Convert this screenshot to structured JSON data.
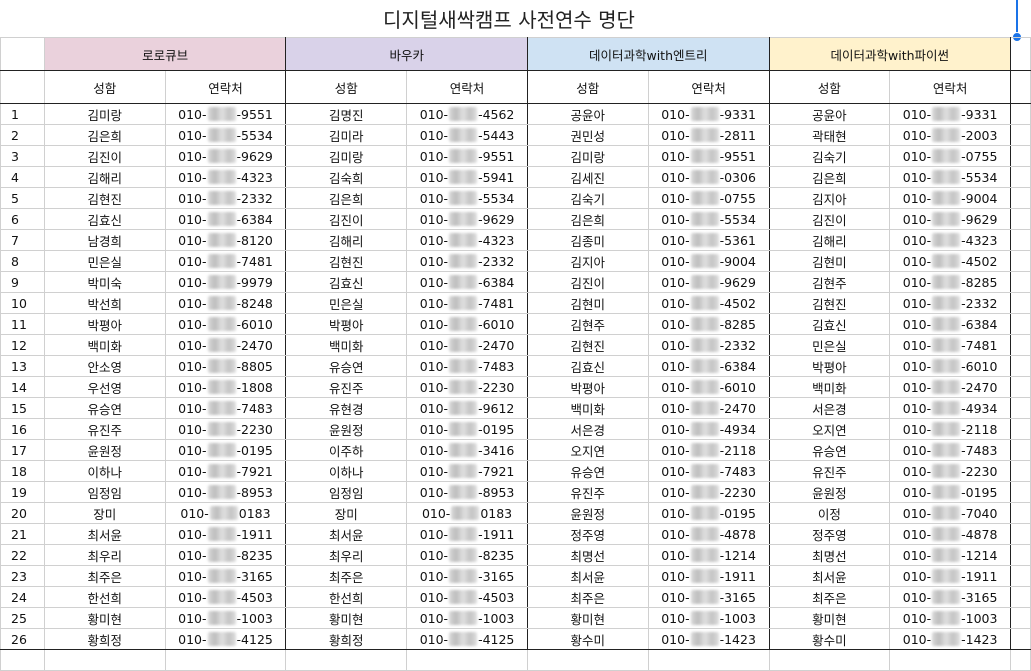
{
  "title": "디지털새싹캠프 사전연수 명단",
  "groups": [
    "로로큐브",
    "바우카",
    "데이터과학with엔트리",
    "데이터과학with파이썬"
  ],
  "colors": {
    "g1": "#ead1dc",
    "g2": "#d9d2e9",
    "g3": "#cfe2f3",
    "g4": "#fff2cc",
    "selection": "#1a73e8"
  },
  "headers": {
    "name": "성함",
    "contact": "연락처"
  },
  "rows": [
    {
      "n": "1",
      "c": [
        [
          "김미랑",
          "010-",
          "-9551"
        ],
        [
          "김명진",
          "010-",
          "-4562"
        ],
        [
          "공윤아",
          "010-",
          "-9331"
        ],
        [
          "공윤아",
          "010-",
          "-9331"
        ]
      ]
    },
    {
      "n": "2",
      "c": [
        [
          "김은희",
          "010-",
          "-5534"
        ],
        [
          "김미라",
          "010-",
          "-5443"
        ],
        [
          "권민성",
          "010-",
          "-2811"
        ],
        [
          "곽태현",
          "010-",
          "-2003"
        ]
      ]
    },
    {
      "n": "3",
      "c": [
        [
          "김진이",
          "010-",
          "-9629"
        ],
        [
          "김미랑",
          "010-",
          "-9551"
        ],
        [
          "김미랑",
          "010-",
          "-9551"
        ],
        [
          "김숙기",
          "010-",
          "-0755"
        ]
      ]
    },
    {
      "n": "4",
      "c": [
        [
          "김해리",
          "010-",
          "-4323"
        ],
        [
          "김숙희",
          "010-",
          "-5941"
        ],
        [
          "김세진",
          "010-",
          "-0306"
        ],
        [
          "김은희",
          "010-",
          "-5534"
        ]
      ]
    },
    {
      "n": "5",
      "c": [
        [
          "김현진",
          "010-",
          "-2332"
        ],
        [
          "김은희",
          "010-",
          "-5534"
        ],
        [
          "김숙기",
          "010-",
          "-0755"
        ],
        [
          "김지아",
          "010-",
          "-9004"
        ]
      ]
    },
    {
      "n": "6",
      "c": [
        [
          "김효신",
          "010-",
          "-6384"
        ],
        [
          "김진이",
          "010-",
          "-9629"
        ],
        [
          "김은희",
          "010-",
          "-5534"
        ],
        [
          "김진이",
          "010-",
          "-9629"
        ]
      ]
    },
    {
      "n": "7",
      "c": [
        [
          "남경희",
          "010-",
          "-8120"
        ],
        [
          "김해리",
          "010-",
          "-4323"
        ],
        [
          "김종미",
          "010-",
          "-5361"
        ],
        [
          "김해리",
          "010-",
          "-4323"
        ]
      ]
    },
    {
      "n": "8",
      "c": [
        [
          "민은실",
          "010-",
          "-7481"
        ],
        [
          "김현진",
          "010-",
          "-2332"
        ],
        [
          "김지아",
          "010-",
          "-9004"
        ],
        [
          "김현미",
          "010-",
          "-4502"
        ]
      ]
    },
    {
      "n": "9",
      "c": [
        [
          "박미숙",
          "010-",
          "-9979"
        ],
        [
          "김효신",
          "010-",
          "-6384"
        ],
        [
          "김진이",
          "010-",
          "-9629"
        ],
        [
          "김현주",
          "010-",
          "-8285"
        ]
      ]
    },
    {
      "n": "10",
      "c": [
        [
          "박선희",
          "010-",
          "-8248"
        ],
        [
          "민은실",
          "010-",
          "-7481"
        ],
        [
          "김현미",
          "010-",
          "-4502"
        ],
        [
          "김현진",
          "010-",
          "-2332"
        ]
      ]
    },
    {
      "n": "11",
      "c": [
        [
          "박평아",
          "010-",
          "-6010"
        ],
        [
          "박평아",
          "010-",
          "-6010"
        ],
        [
          "김현주",
          "010-",
          "-8285"
        ],
        [
          "김효신",
          "010-",
          "-6384"
        ]
      ]
    },
    {
      "n": "12",
      "c": [
        [
          "백미화",
          "010-",
          "-2470"
        ],
        [
          "백미화",
          "010-",
          "-2470"
        ],
        [
          "김현진",
          "010-",
          "-2332"
        ],
        [
          "민은실",
          "010-",
          "-7481"
        ]
      ]
    },
    {
      "n": "13",
      "c": [
        [
          "안소영",
          "010-",
          "-8805"
        ],
        [
          "유승연",
          "010-",
          "-7483"
        ],
        [
          "김효신",
          "010-",
          "-6384"
        ],
        [
          "박평아",
          "010-",
          "-6010"
        ]
      ]
    },
    {
      "n": "14",
      "c": [
        [
          "우선영",
          "010-",
          "-1808"
        ],
        [
          "유진주",
          "010-",
          "-2230"
        ],
        [
          "박평아",
          "010-",
          "-6010"
        ],
        [
          "백미화",
          "010-",
          "-2470"
        ]
      ]
    },
    {
      "n": "15",
      "c": [
        [
          "유승연",
          "010-",
          "-7483"
        ],
        [
          "유현경",
          "010-",
          "-9612"
        ],
        [
          "백미화",
          "010-",
          "-2470"
        ],
        [
          "서은경",
          "010-",
          "-4934"
        ]
      ]
    },
    {
      "n": "16",
      "c": [
        [
          "유진주",
          "010-",
          "-2230"
        ],
        [
          "윤원정",
          "010-",
          "-0195"
        ],
        [
          "서은경",
          "010-",
          "-4934"
        ],
        [
          "오지연",
          "010-",
          "-2118"
        ]
      ]
    },
    {
      "n": "17",
      "c": [
        [
          "윤원정",
          "010-",
          "-0195"
        ],
        [
          "이주하",
          "010-",
          "-3416"
        ],
        [
          "오지연",
          "010-",
          "-2118"
        ],
        [
          "유승연",
          "010-",
          "-7483"
        ]
      ]
    },
    {
      "n": "18",
      "c": [
        [
          "이하나",
          "010-",
          "-7921"
        ],
        [
          "이하나",
          "010-",
          "-7921"
        ],
        [
          "유승연",
          "010-",
          "-7483"
        ],
        [
          "유진주",
          "010-",
          "-2230"
        ]
      ]
    },
    {
      "n": "19",
      "c": [
        [
          "임정임",
          "010-",
          "-8953"
        ],
        [
          "임정임",
          "010-",
          "-8953"
        ],
        [
          "유진주",
          "010-",
          "-2230"
        ],
        [
          "윤원정",
          "010-",
          "-0195"
        ]
      ]
    },
    {
      "n": "20",
      "c": [
        [
          "장미",
          "010-",
          "0183"
        ],
        [
          "장미",
          "010-",
          "0183"
        ],
        [
          "윤원정",
          "010-",
          "-0195"
        ],
        [
          "이정",
          "010-",
          "-7040"
        ]
      ]
    },
    {
      "n": "21",
      "c": [
        [
          "최서윤",
          "010-",
          "-1911"
        ],
        [
          "최서윤",
          "010-",
          "-1911"
        ],
        [
          "정주영",
          "010-",
          "-4878"
        ],
        [
          "정주영",
          "010-",
          "-4878"
        ]
      ]
    },
    {
      "n": "22",
      "c": [
        [
          "최우리",
          "010-",
          "-8235"
        ],
        [
          "최우리",
          "010-",
          "-8235"
        ],
        [
          "최명선",
          "010-",
          "-1214"
        ],
        [
          "최명선",
          "010-",
          "-1214"
        ]
      ]
    },
    {
      "n": "23",
      "c": [
        [
          "최주은",
          "010-",
          "-3165"
        ],
        [
          "최주은",
          "010-",
          "-3165"
        ],
        [
          "최서윤",
          "010-",
          "-1911"
        ],
        [
          "최서윤",
          "010-",
          "-1911"
        ]
      ]
    },
    {
      "n": "24",
      "c": [
        [
          "한선희",
          "010-",
          "-4503"
        ],
        [
          "한선희",
          "010-",
          "-4503"
        ],
        [
          "최주은",
          "010-",
          "-3165"
        ],
        [
          "최주은",
          "010-",
          "-3165"
        ]
      ]
    },
    {
      "n": "25",
      "c": [
        [
          "황미현",
          "010-",
          "-1003"
        ],
        [
          "황미현",
          "010-",
          "-1003"
        ],
        [
          "황미현",
          "010-",
          "-1003"
        ],
        [
          "황미현",
          "010-",
          "-1003"
        ]
      ]
    },
    {
      "n": "26",
      "c": [
        [
          "황희정",
          "010-",
          "-4125"
        ],
        [
          "황희정",
          "010-",
          "-4125"
        ],
        [
          "황수미",
          "010-",
          "-1423"
        ],
        [
          "황수미",
          "010-",
          "-1423"
        ]
      ]
    }
  ]
}
